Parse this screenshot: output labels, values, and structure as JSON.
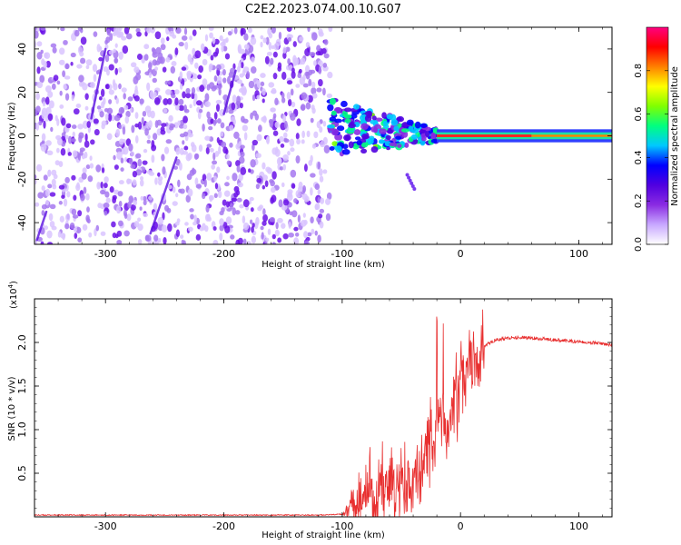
{
  "figure_title": "C2E2.2023.074.00.10.G07",
  "chart_data": [
    {
      "type": "heatmap",
      "title": "C2E2.2023.074.00.10.G07",
      "xlabel": "Height of straight line (km)",
      "ylabel": "Frequency (Hz)",
      "xlim": [
        -360,
        128
      ],
      "ylim": [
        -50,
        50
      ],
      "xticks": [
        -300,
        -200,
        -100,
        0,
        100
      ],
      "yticks": [
        -40,
        -20,
        0,
        20,
        40
      ],
      "grid": false,
      "colorbar": {
        "label": "Normalized spectral amplitude",
        "range": [
          0,
          1
        ],
        "ticks": [
          "0.0",
          "0.2",
          "0.4",
          "0.6",
          "0.8"
        ],
        "colors": [
          "#ffffff",
          "#c8a8ff",
          "#8a2be2",
          "#5000e0",
          "#0000ff",
          "#00c8ff",
          "#00ff80",
          "#80ff00",
          "#ffff00",
          "#ff8000",
          "#ff0000",
          "#ff0080"
        ]
      },
      "regions": [
        {
          "name": "noise",
          "x_range": [
            -360,
            -110
          ],
          "y_range": [
            -50,
            50
          ],
          "amplitude": 0.15
        },
        {
          "name": "transition",
          "x_range": [
            -110,
            -20
          ],
          "y_range": [
            -12,
            12
          ],
          "amplitude": 0.5
        },
        {
          "name": "carrier",
          "x_range": [
            -20,
            128
          ],
          "y_range": [
            -3,
            3
          ],
          "amplitude": 1.0
        }
      ]
    },
    {
      "type": "line",
      "xlabel": "Height of straight line (km)",
      "ylabel": "SNR (10 * v/v)",
      "yscale_label": "(x10",
      "yscale_exp": "4",
      "xlim": [
        -360,
        128
      ],
      "ylim": [
        0,
        2.5
      ],
      "xticks": [
        -300,
        -200,
        -100,
        0,
        100
      ],
      "yticks": [
        0.5,
        1.0,
        1.5,
        2.0
      ],
      "yticklabels": [
        "0.5",
        "1.0",
        "1.5",
        "2.0"
      ],
      "grid": false,
      "series": [
        {
          "color": "#e83030",
          "x": [
            -360,
            -300,
            -200,
            -120,
            -100,
            -95,
            -85,
            -75,
            -60,
            -45,
            -35,
            -30,
            -25,
            -20,
            -17,
            -15,
            -12,
            -8,
            -5,
            0,
            5,
            10,
            15,
            20,
            25,
            30,
            40,
            50,
            60,
            70,
            80,
            90,
            100,
            110,
            120,
            128
          ],
          "y": [
            0.02,
            0.02,
            0.02,
            0.02,
            0.03,
            0.08,
            0.2,
            0.3,
            0.35,
            0.4,
            0.5,
            0.65,
            0.8,
            1.0,
            1.1,
            0.95,
            1.05,
            1.2,
            1.3,
            1.45,
            1.6,
            1.75,
            1.85,
            1.95,
            2.0,
            2.03,
            2.05,
            2.06,
            2.05,
            2.04,
            2.03,
            2.02,
            2.01,
            2.0,
            1.98,
            1.97
          ]
        }
      ]
    }
  ]
}
